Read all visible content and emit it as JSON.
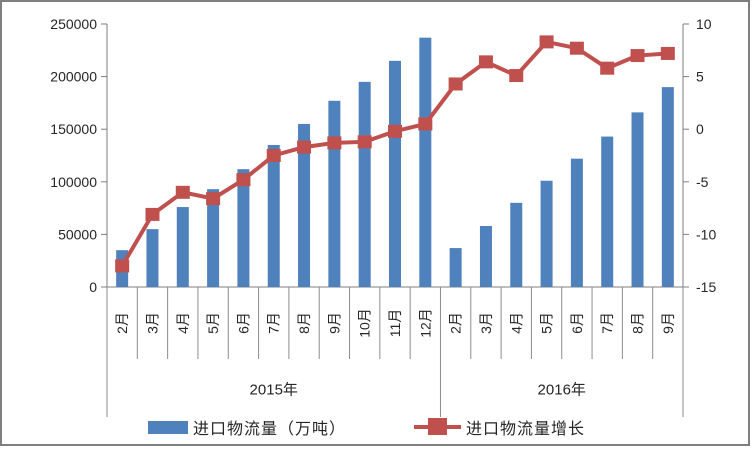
{
  "chart_data": {
    "type": "combo-bar-line",
    "title": "",
    "categories": [
      "2月",
      "3月",
      "4月",
      "5月",
      "6月",
      "7月",
      "8月",
      "9月",
      "10月",
      "11月",
      "12月",
      "2月",
      "3月",
      "4月",
      "5月",
      "6月",
      "7月",
      "8月",
      "9月"
    ],
    "year_groups": [
      {
        "label": "2015年",
        "count": 11
      },
      {
        "label": "2016年",
        "count": 8
      }
    ],
    "series": [
      {
        "name": "进口物流量（万吨）",
        "type": "bar",
        "axis": "left",
        "color": "#4F81BD",
        "values": [
          35000,
          55000,
          76000,
          93000,
          112000,
          135000,
          155000,
          177000,
          195000,
          215000,
          237000,
          37000,
          58000,
          80000,
          101000,
          122000,
          143000,
          166000,
          190000
        ]
      },
      {
        "name": "进口物流量增长",
        "type": "line",
        "axis": "right",
        "color": "#C0504D",
        "marker": "square",
        "values": [
          -13,
          -8.1,
          -6,
          -6.6,
          -4.8,
          -2.5,
          -1.7,
          -1.3,
          -1.2,
          -0.2,
          0.5,
          4.3,
          6.4,
          5.1,
          8.3,
          7.7,
          5.8,
          7,
          7.2
        ]
      }
    ],
    "left_axis": {
      "min": 0,
      "max": 250000,
      "step": 50000,
      "tick_labels": [
        "0",
        "50000",
        "100000",
        "150000",
        "200000",
        "250000"
      ]
    },
    "right_axis": {
      "min": -15,
      "max": 10,
      "step": 5,
      "tick_labels": [
        "-15",
        "-10",
        "-5",
        "0",
        "5",
        "10"
      ]
    },
    "grid": false,
    "legend_position": "bottom",
    "colors": {
      "axis_line": "#7f7f7f",
      "separator_line": "#8c8c8c",
      "tick_text": "#262626",
      "frame_border": "#7f7f7f",
      "background": "#ffffff"
    }
  }
}
